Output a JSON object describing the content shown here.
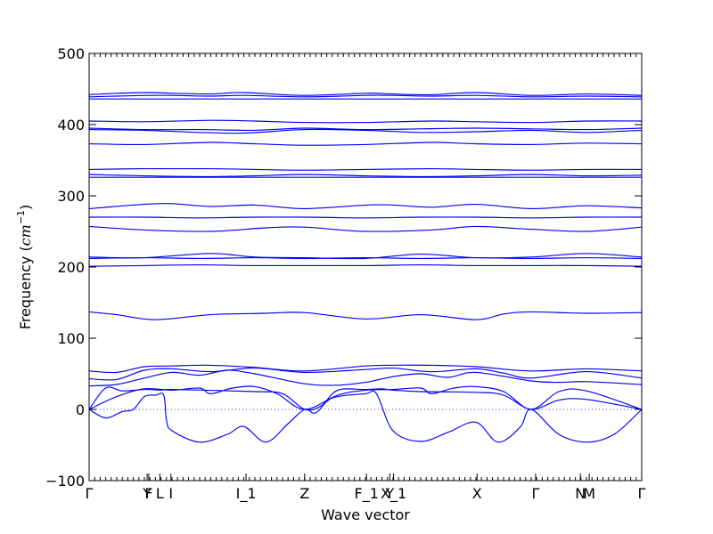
{
  "chart_data": {
    "type": "line",
    "title": "",
    "xlabel": "Wave vector",
    "ylabel": "Frequency (cm⁻¹)",
    "ylabel_text": "Frequency (",
    "ylabel_math": "cm",
    "ylabel_sup": "−1",
    "ylabel_close": ")",
    "ylim": [
      -100,
      500
    ],
    "xlim": [
      0,
      1
    ],
    "y_ticks": [
      -100,
      0,
      100,
      200,
      300,
      400,
      500
    ],
    "x_ticks": [
      {
        "label": "Γ",
        "x": 0.0
      },
      {
        "label": "Y",
        "x": 0.105
      },
      {
        "label": "F",
        "x": 0.108
      },
      {
        "label": "L",
        "x": 0.128
      },
      {
        "label": "I",
        "x": 0.148
      },
      {
        "label": "I_1",
        "x": 0.284
      },
      {
        "label": "Z",
        "x": 0.39
      },
      {
        "label": "F_1",
        "x": 0.502
      },
      {
        "label": "Y",
        "x": 0.544
      },
      {
        "label": "X_1",
        "x": 0.551
      },
      {
        "label": "X",
        "x": 0.702
      },
      {
        "label": "Γ",
        "x": 0.808
      },
      {
        "label": "N",
        "x": 0.889
      },
      {
        "label": "M",
        "x": 0.905
      },
      {
        "label": "Γ",
        "x": 1.0
      }
    ],
    "zero_line": 0,
    "grid": false,
    "series": [
      {
        "x": [
          0,
          0.05,
          0.11,
          0.15,
          0.22,
          0.28,
          0.39,
          0.5,
          0.55,
          0.62,
          0.7,
          0.8,
          0.9,
          1.0
        ],
        "y": [
          442,
          444,
          445,
          444,
          443,
          445,
          441,
          444,
          443,
          442,
          445,
          441,
          443,
          441
        ]
      },
      {
        "x": [
          0,
          0.05,
          0.11,
          0.15,
          0.22,
          0.28,
          0.39,
          0.5,
          0.55,
          0.62,
          0.7,
          0.8,
          0.9,
          1.0
        ],
        "y": [
          439,
          440,
          441,
          441,
          440,
          441,
          439,
          441,
          441,
          440,
          441,
          439,
          440,
          439
        ]
      },
      {
        "x": [
          0,
          0.1,
          0.2,
          0.3,
          0.4,
          0.5,
          0.6,
          0.7,
          0.8,
          0.9,
          1.0
        ],
        "y": [
          436,
          436,
          436,
          436,
          436,
          436,
          436,
          436,
          436,
          436,
          436
        ]
      },
      {
        "x": [
          0,
          0.1,
          0.22,
          0.3,
          0.39,
          0.5,
          0.62,
          0.7,
          0.8,
          0.9,
          1.0
        ],
        "y": [
          405,
          404,
          406,
          405,
          403,
          403,
          405,
          404,
          403,
          405,
          405
        ]
      },
      {
        "x": [
          0,
          0.1,
          0.2,
          0.3,
          0.39,
          0.5,
          0.6,
          0.7,
          0.8,
          0.9,
          1.0
        ],
        "y": [
          395,
          393,
          393,
          392,
          395,
          393,
          394,
          395,
          394,
          393,
          395
        ]
      },
      {
        "x": [
          0,
          0.1,
          0.2,
          0.28,
          0.39,
          0.5,
          0.6,
          0.7,
          0.8,
          0.9,
          1.0
        ],
        "y": [
          393,
          392,
          389,
          388,
          393,
          392,
          389,
          390,
          392,
          389,
          392
        ]
      },
      {
        "x": [
          0,
          0.1,
          0.22,
          0.3,
          0.39,
          0.5,
          0.62,
          0.7,
          0.8,
          0.9,
          1.0
        ],
        "y": [
          373,
          372,
          375,
          373,
          371,
          372,
          375,
          373,
          372,
          374,
          373
        ]
      },
      {
        "x": [
          0,
          0.1,
          0.22,
          0.3,
          0.39,
          0.5,
          0.62,
          0.7,
          0.8,
          0.9,
          1.0
        ],
        "y": [
          337,
          338,
          338,
          337,
          336,
          337,
          338,
          337,
          336,
          337,
          337
        ]
      },
      {
        "x": [
          0,
          0.1,
          0.2,
          0.3,
          0.39,
          0.5,
          0.6,
          0.7,
          0.8,
          0.9,
          1.0
        ],
        "y": [
          330,
          328,
          327,
          328,
          330,
          328,
          327,
          328,
          330,
          328,
          329
        ]
      },
      {
        "x": [
          0,
          0.1,
          0.2,
          0.3,
          0.39,
          0.5,
          0.6,
          0.7,
          0.8,
          0.9,
          1.0
        ],
        "y": [
          326,
          326,
          326,
          326,
          326,
          326,
          326,
          326,
          326,
          326,
          326
        ]
      },
      {
        "x": [
          0,
          0.1,
          0.15,
          0.22,
          0.3,
          0.39,
          0.5,
          0.55,
          0.62,
          0.7,
          0.8,
          0.9,
          1.0
        ],
        "y": [
          282,
          288,
          289,
          285,
          287,
          282,
          287,
          287,
          284,
          288,
          282,
          286,
          283
        ]
      },
      {
        "x": [
          0,
          0.1,
          0.2,
          0.3,
          0.39,
          0.5,
          0.6,
          0.7,
          0.8,
          0.9,
          1.0
        ],
        "y": [
          270,
          270,
          269,
          270,
          270,
          269,
          270,
          270,
          269,
          270,
          270
        ]
      },
      {
        "x": [
          0,
          0.1,
          0.22,
          0.32,
          0.39,
          0.5,
          0.62,
          0.7,
          0.8,
          0.9,
          1.0
        ],
        "y": [
          257,
          252,
          250,
          255,
          256,
          250,
          252,
          257,
          253,
          250,
          256
        ]
      },
      {
        "x": [
          0,
          0.1,
          0.22,
          0.3,
          0.39,
          0.5,
          0.6,
          0.7,
          0.8,
          0.9,
          1.0
        ],
        "y": [
          214,
          213,
          219,
          214,
          213,
          212,
          218,
          213,
          214,
          219,
          214
        ]
      },
      {
        "x": [
          0,
          0.1,
          0.2,
          0.3,
          0.39,
          0.5,
          0.6,
          0.7,
          0.8,
          0.9,
          1.0
        ],
        "y": [
          212,
          213,
          212,
          213,
          212,
          213,
          212,
          213,
          212,
          213,
          212
        ]
      },
      {
        "x": [
          0,
          0.1,
          0.2,
          0.3,
          0.39,
          0.5,
          0.6,
          0.7,
          0.8,
          0.9,
          1.0
        ],
        "y": [
          201,
          202,
          203,
          202,
          202,
          202,
          203,
          202,
          202,
          202,
          201
        ]
      },
      {
        "x": [
          0,
          0.05,
          0.12,
          0.22,
          0.32,
          0.39,
          0.5,
          0.6,
          0.7,
          0.75,
          0.8,
          0.9,
          1.0
        ],
        "y": [
          137,
          133,
          126,
          133,
          135,
          136,
          127,
          133,
          126,
          134,
          137,
          135,
          136
        ]
      },
      {
        "x": [
          0,
          0.05,
          0.1,
          0.15,
          0.22,
          0.3,
          0.39,
          0.5,
          0.55,
          0.62,
          0.7,
          0.8,
          0.9,
          1.0
        ],
        "y": [
          54,
          52,
          60,
          61,
          62,
          59,
          54,
          61,
          62,
          62,
          60,
          54,
          57,
          54
        ]
      },
      {
        "x": [
          0,
          0.05,
          0.1,
          0.15,
          0.22,
          0.3,
          0.39,
          0.5,
          0.55,
          0.62,
          0.7,
          0.75,
          0.8,
          0.9,
          1.0
        ],
        "y": [
          43,
          42,
          55,
          57,
          53,
          58,
          52,
          56,
          58,
          53,
          57,
          51,
          44,
          53,
          44
        ]
      },
      {
        "x": [
          0,
          0.05,
          0.1,
          0.15,
          0.2,
          0.25,
          0.3,
          0.39,
          0.45,
          0.5,
          0.55,
          0.6,
          0.65,
          0.7,
          0.8,
          0.85,
          0.9,
          1.0
        ],
        "y": [
          33,
          35,
          44,
          52,
          48,
          55,
          50,
          36,
          34,
          38,
          46,
          50,
          45,
          52,
          40,
          38,
          39,
          35
        ]
      },
      {
        "x": [
          0,
          0.05,
          0.1,
          0.15,
          0.2,
          0.22,
          0.26,
          0.3,
          0.34,
          0.39,
          0.45,
          0.5,
          0.55,
          0.6,
          0.62,
          0.66,
          0.7,
          0.75,
          0.8,
          0.85,
          0.9,
          1.0
        ],
        "y": [
          0,
          18,
          29,
          27,
          30,
          22,
          30,
          32,
          22,
          0,
          20,
          27,
          28,
          30,
          22,
          30,
          32,
          25,
          0,
          25,
          26,
          0
        ]
      },
      {
        "x": [
          0,
          0.03,
          0.06,
          0.1,
          0.13,
          0.15,
          0.3,
          0.35,
          0.39,
          0.42,
          0.45,
          0.5,
          0.53,
          0.55,
          0.6,
          0.7,
          0.75,
          0.8,
          0.85,
          0.9,
          1.0
        ],
        "y": [
          0,
          30,
          26,
          28,
          27,
          28,
          25,
          22,
          0,
          5,
          27,
          28,
          29,
          27,
          25,
          24,
          20,
          0,
          13,
          14,
          0
        ]
      },
      {
        "x": [
          0,
          0.03,
          0.06,
          0.08,
          0.1,
          0.12,
          0.135,
          0.14,
          0.15,
          0.2,
          0.25,
          0.28,
          0.32,
          0.36,
          0.39,
          0.41,
          0.44,
          0.5,
          0.52,
          0.55,
          0.6,
          0.65,
          0.7,
          0.74,
          0.78,
          0.8,
          0.85,
          0.9,
          0.95,
          1.0
        ],
        "y": [
          0,
          -12,
          -3,
          0,
          18,
          20,
          20,
          -15,
          -30,
          -46,
          -35,
          -24,
          -46,
          -20,
          0,
          -5,
          16,
          22,
          22,
          -30,
          -45,
          -32,
          -18,
          -46,
          -25,
          0,
          -35,
          -46,
          -35,
          0
        ]
      }
    ]
  }
}
